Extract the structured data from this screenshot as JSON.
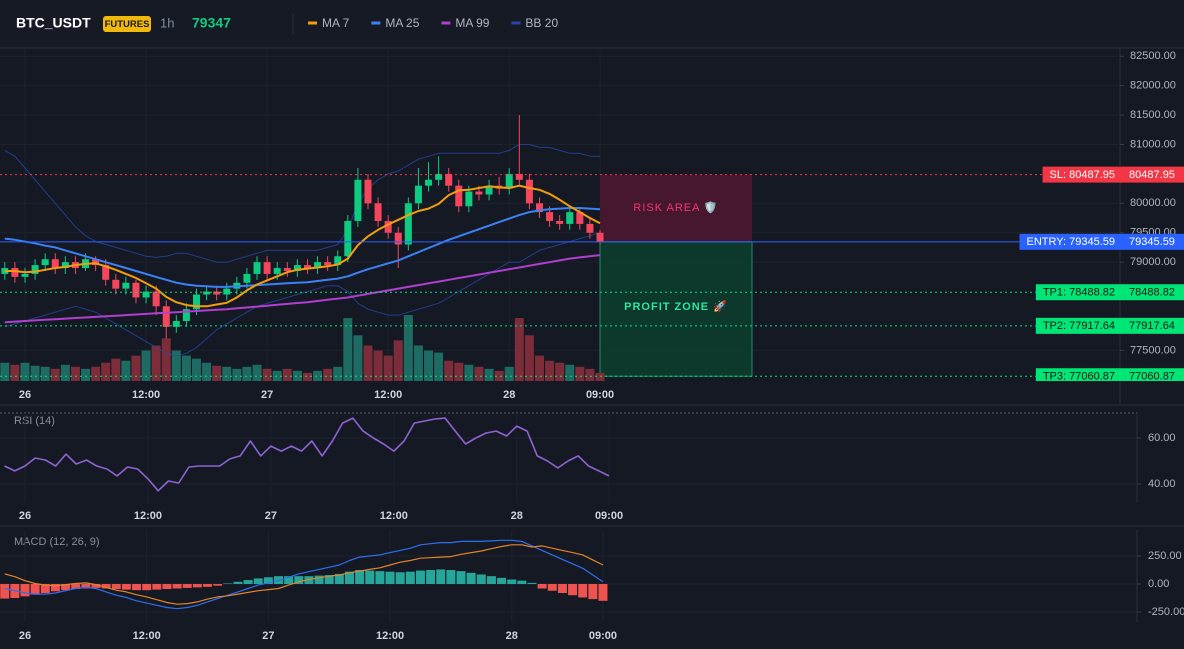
{
  "header": {
    "symbol": "BTC_USDT",
    "badge": "FUTURES",
    "interval": "1h",
    "price": 79347
  },
  "chart_data": [
    {
      "type": "candlestick",
      "categories": [
        null,
        null,
        "26",
        null,
        null,
        null,
        null,
        null,
        null,
        null,
        null,
        null,
        null,
        null,
        "12:00",
        null,
        null,
        null,
        null,
        null,
        null,
        null,
        null,
        null,
        null,
        null,
        "27",
        null,
        null,
        null,
        null,
        null,
        null,
        null,
        null,
        null,
        null,
        null,
        "12:00",
        null,
        null,
        null,
        null,
        null,
        null,
        null,
        null,
        null,
        null,
        null,
        "28",
        null,
        null,
        null,
        null,
        null,
        null,
        null,
        null,
        "09:00"
      ],
      "open": [
        78800,
        78900,
        78750,
        78800,
        78950,
        79050,
        78900,
        79000,
        78900,
        79050,
        78950,
        78700,
        78550,
        78650,
        78400,
        78500,
        78250,
        77900,
        78000,
        78200,
        78450,
        78500,
        78450,
        78550,
        78650,
        78800,
        79000,
        78800,
        78900,
        78850,
        78950,
        78900,
        79000,
        78950,
        79100,
        79700,
        80400,
        80000,
        79700,
        79500,
        79300,
        80000,
        80300,
        80400,
        80500,
        80300,
        79950,
        80200,
        80150,
        80300,
        80250,
        80500,
        80400,
        80000,
        79850,
        79700,
        79650,
        79850,
        79650,
        79500
      ],
      "high": [
        79000,
        79000,
        78900,
        79050,
        79150,
        79150,
        79100,
        79100,
        79150,
        79100,
        79050,
        78800,
        78750,
        78700,
        78600,
        78600,
        78350,
        78100,
        78300,
        78550,
        78600,
        78600,
        78650,
        78750,
        78900,
        79100,
        79100,
        79000,
        79000,
        79050,
        79050,
        79100,
        79100,
        79200,
        79800,
        80600,
        80500,
        80100,
        79800,
        79600,
        80100,
        80600,
        80700,
        80800,
        80600,
        80400,
        80300,
        80300,
        80400,
        80450,
        80600,
        81500,
        80500,
        80100,
        79950,
        79800,
        79950,
        79900,
        79750,
        79550
      ],
      "low": [
        78700,
        78650,
        78650,
        78700,
        78850,
        78800,
        78800,
        78800,
        78850,
        78850,
        78600,
        78450,
        78450,
        78300,
        78300,
        78100,
        77700,
        77800,
        77900,
        78100,
        78350,
        78350,
        78350,
        78450,
        78550,
        78700,
        78700,
        78700,
        78750,
        78750,
        78800,
        78800,
        78850,
        78850,
        79000,
        79600,
        79900,
        79600,
        79400,
        78900,
        79200,
        79900,
        80200,
        80300,
        80200,
        79850,
        79850,
        80050,
        80050,
        80150,
        80150,
        80300,
        79900,
        79750,
        79600,
        79550,
        79550,
        79550,
        79400,
        79300
      ],
      "close": [
        78900,
        78750,
        78800,
        78950,
        79050,
        78900,
        79000,
        78900,
        79050,
        78950,
        78700,
        78550,
        78650,
        78400,
        78500,
        78250,
        77900,
        78000,
        78200,
        78450,
        78500,
        78450,
        78550,
        78650,
        78800,
        79000,
        78800,
        78900,
        78850,
        78950,
        78900,
        79000,
        78950,
        79100,
        79700,
        80400,
        80000,
        79700,
        79500,
        79300,
        80000,
        80300,
        80400,
        80500,
        80300,
        79950,
        80200,
        80150,
        80300,
        80250,
        80500,
        80400,
        80000,
        79850,
        79700,
        79650,
        79850,
        79650,
        79500,
        79345.59
      ],
      "up_color": "#0ecb81",
      "down_color": "#f6465d",
      "volume": {
        "values": [
          18,
          16,
          18,
          15,
          14,
          12,
          16,
          14,
          12,
          14,
          18,
          22,
          20,
          25,
          30,
          35,
          42,
          30,
          25,
          22,
          18,
          15,
          14,
          12,
          14,
          16,
          12,
          10,
          12,
          10,
          8,
          10,
          12,
          14,
          62,
          45,
          35,
          30,
          25,
          40,
          65,
          35,
          30,
          28,
          20,
          18,
          16,
          14,
          12,
          10,
          14,
          62,
          45,
          25,
          20,
          18,
          16,
          14,
          12,
          8
        ],
        "up_color": "#1d6b62",
        "down_color": "#7c2d39"
      },
      "overlays": [
        {
          "name": "MA 7",
          "color": "#f59e0b",
          "values": [
            78850,
            78850,
            78830,
            78840,
            78870,
            78900,
            78920,
            78950,
            78970,
            78980,
            78930,
            78870,
            78800,
            78730,
            78640,
            78550,
            78410,
            78320,
            78270,
            78250,
            78250,
            78280,
            78310,
            78400,
            78520,
            78620,
            78690,
            78760,
            78830,
            78870,
            78890,
            78910,
            78930,
            78960,
            79060,
            79290,
            79440,
            79550,
            79640,
            79720,
            79800,
            79870,
            79910,
            79990,
            80140,
            80220,
            80230,
            80260,
            80290,
            80270,
            80260,
            80300,
            80260,
            80230,
            80160,
            80060,
            79950,
            79850,
            79750,
            79660
          ]
        },
        {
          "name": "MA 25",
          "color": "#3b82f6",
          "values": [
            79400,
            79380,
            79350,
            79320,
            79280,
            79250,
            79200,
            79150,
            79100,
            79050,
            79000,
            78950,
            78900,
            78850,
            78800,
            78750,
            78700,
            78650,
            78620,
            78600,
            78590,
            78580,
            78580,
            78590,
            78600,
            78610,
            78620,
            78630,
            78640,
            78650,
            78660,
            78680,
            78700,
            78720,
            78760,
            78820,
            78880,
            78930,
            78980,
            79030,
            79100,
            79170,
            79240,
            79310,
            79380,
            79440,
            79500,
            79560,
            79620,
            79680,
            79740,
            79800,
            79850,
            79880,
            79900,
            79910,
            79920,
            79920,
            79910,
            79900
          ]
        },
        {
          "name": "MA 99",
          "color": "#b13fd1",
          "values": [
            77980,
            77990,
            78000,
            78010,
            78020,
            78030,
            78040,
            78050,
            78060,
            78070,
            78080,
            78090,
            78100,
            78110,
            78120,
            78130,
            78140,
            78150,
            78160,
            78170,
            78180,
            78190,
            78200,
            78215,
            78230,
            78245,
            78260,
            78275,
            78290,
            78305,
            78320,
            78340,
            78360,
            78380,
            78400,
            78430,
            78460,
            78490,
            78520,
            78550,
            78580,
            78610,
            78640,
            78670,
            78700,
            78730,
            78760,
            78790,
            78820,
            78850,
            78880,
            78910,
            78940,
            78970,
            79000,
            79030,
            79060,
            79080,
            79100,
            79120
          ]
        },
        {
          "name": "BB 20",
          "color": "#2747a8",
          "upper": [
            80900,
            80800,
            80600,
            80400,
            80200,
            80000,
            79800,
            79600,
            79450,
            79350,
            79300,
            79250,
            79200,
            79150,
            79100,
            79080,
            79100,
            79150,
            79150,
            79100,
            79050,
            79000,
            79000,
            79050,
            79100,
            79150,
            79200,
            79200,
            79200,
            79200,
            79200,
            79200,
            79250,
            79300,
            79550,
            80000,
            80250,
            80400,
            80500,
            80550,
            80650,
            80750,
            80800,
            80850,
            80850,
            80850,
            80850,
            80850,
            80850,
            80850,
            80900,
            81000,
            81000,
            80950,
            80950,
            80900,
            80850,
            80850,
            80800,
            80800
          ],
          "lower": [
            77900,
            77950,
            78000,
            78050,
            78100,
            78150,
            78200,
            78250,
            78200,
            78150,
            78050,
            77950,
            77850,
            77750,
            77650,
            77550,
            77450,
            77400,
            77450,
            77550,
            77700,
            77850,
            77950,
            78050,
            78150,
            78250,
            78300,
            78350,
            78400,
            78450,
            78500,
            78550,
            78600,
            78600,
            78500,
            78300,
            78200,
            78150,
            78100,
            78100,
            78150,
            78200,
            78250,
            78300,
            78400,
            78500,
            78600,
            78700,
            78800,
            78900,
            79000,
            79000,
            79100,
            79200,
            79250,
            79300,
            79350,
            79400,
            79450,
            79500
          ]
        }
      ],
      "ylim": [
        76980,
        82640
      ],
      "yticks": [
        {
          "value": 82500,
          "label": "82500.00"
        },
        {
          "value": 82000,
          "label": "82000.00"
        },
        {
          "value": 81500,
          "label": "81500.00"
        },
        {
          "value": 81000,
          "label": "81000.00"
        },
        {
          "value": 80000,
          "label": "80000.00"
        },
        {
          "value": 79500,
          "label": "79500.00"
        },
        {
          "value": 79000,
          "label": "79000.00"
        },
        {
          "value": 77500,
          "label": "77500.00"
        }
      ],
      "grid": true,
      "levels": [
        {
          "label": "SL: 80487.95",
          "value": 80487.95,
          "color": "#f23645",
          "text_color": "#ffffff",
          "style": "dotted"
        },
        {
          "label": "ENTRY: 79345.59",
          "value": 79345.59,
          "color": "#2962ff",
          "text_color": "#ffffff",
          "style": "solid"
        },
        {
          "label": "TP1: 78488.82",
          "value": 78488.82,
          "color": "#00e676",
          "text_color": "#0b1a12",
          "style": "dotted"
        },
        {
          "label": "TP2: 77917.64",
          "value": 77917.64,
          "color": "#00e676",
          "text_color": "#0b1a12",
          "style": "dotted"
        },
        {
          "label": "TP3: 77060.87",
          "value": 77060.87,
          "color": "#00e676",
          "text_color": "#0b1a12",
          "style": "dotted"
        }
      ],
      "risk_label": "RISK AREA 🛡️",
      "profit_label": "PROFIT ZONE 🚀"
    },
    {
      "type": "line",
      "title": "RSI (14)",
      "categories": [
        null,
        null,
        "26",
        null,
        null,
        null,
        null,
        null,
        null,
        null,
        null,
        null,
        null,
        null,
        "12:00",
        null,
        null,
        null,
        null,
        null,
        null,
        null,
        null,
        null,
        null,
        null,
        "27",
        null,
        null,
        null,
        null,
        null,
        null,
        null,
        null,
        null,
        null,
        null,
        "12:00",
        null,
        null,
        null,
        null,
        null,
        null,
        null,
        null,
        null,
        null,
        null,
        "28",
        null,
        null,
        null,
        null,
        null,
        null,
        null,
        null,
        "09:00"
      ],
      "values": [
        47.8,
        45.7,
        47.8,
        51.3,
        50.4,
        47.8,
        53.0,
        48.7,
        50.4,
        47.8,
        46.5,
        43.5,
        47.4,
        46.5,
        42.2,
        37.0,
        41.3,
        40.4,
        47.4,
        47.8,
        47.8,
        47.8,
        50.9,
        52.2,
        58.7,
        52.2,
        56.5,
        54.3,
        56.5,
        54.3,
        58.7,
        52.2,
        58.7,
        66.5,
        68.7,
        63.0,
        60.0,
        57.4,
        54.3,
        58.7,
        66.5,
        67.4,
        68.3,
        68.7,
        63.0,
        57.4,
        60.0,
        62.2,
        63.0,
        60.9,
        65.2,
        63.0,
        52.2,
        50.0,
        47.0,
        50.0,
        52.2,
        47.8,
        45.7,
        43.5
      ],
      "color": "#8e63d2",
      "ylim": [
        31.7,
        70.9
      ],
      "yticks": [
        {
          "value": 60,
          "label": "60.00"
        },
        {
          "value": 40,
          "label": "40.00"
        }
      ],
      "grid": true
    },
    {
      "type": "macd",
      "title": "MACD (12, 26, 9)",
      "categories": [
        null,
        null,
        "26",
        null,
        null,
        null,
        null,
        null,
        null,
        null,
        null,
        null,
        null,
        null,
        "12:00",
        null,
        null,
        null,
        null,
        null,
        null,
        null,
        null,
        null,
        null,
        null,
        "27",
        null,
        null,
        null,
        null,
        null,
        null,
        null,
        null,
        null,
        null,
        null,
        "12:00",
        null,
        null,
        null,
        null,
        null,
        null,
        null,
        null,
        null,
        null,
        null,
        "28",
        null,
        null,
        null,
        null,
        null,
        null,
        null,
        null,
        "09:00"
      ],
      "histogram": [
        -130,
        -125,
        -110,
        -95,
        -80,
        -65,
        -55,
        -45,
        -40,
        -35,
        -40,
        -45,
        -50,
        -55,
        -55,
        -50,
        -45,
        -40,
        -35,
        -30,
        -25,
        -15,
        5,
        20,
        35,
        50,
        60,
        70,
        70,
        70,
        70,
        75,
        80,
        90,
        110,
        125,
        120,
        115,
        110,
        105,
        110,
        120,
        125,
        130,
        125,
        115,
        100,
        85,
        70,
        55,
        40,
        30,
        10,
        -40,
        -60,
        -80,
        -100,
        -120,
        -135,
        -150
      ],
      "pos_color": "#26a69a",
      "neg_color": "#ef5350",
      "macd": {
        "color": "#2f6ff0",
        "values": [
          -40,
          -60,
          -80,
          -90,
          -90,
          -80,
          -60,
          -40,
          -30,
          -40,
          -70,
          -100,
          -120,
          -150,
          -170,
          -190,
          -210,
          -220,
          -210,
          -190,
          -160,
          -130,
          -100,
          -70,
          -40,
          -10,
          10,
          30,
          60,
          90,
          110,
          130,
          150,
          170,
          210,
          240,
          250,
          260,
          280,
          300,
          320,
          350,
          360,
          370,
          370,
          380,
          380,
          380,
          385,
          390,
          390,
          380,
          340,
          300,
          260,
          220,
          180,
          140,
          80,
          20
        ]
      },
      "signal": {
        "color": "#e5832c",
        "values": [
          90,
          65,
          30,
          5,
          -10,
          -15,
          -5,
          5,
          10,
          -5,
          -30,
          -55,
          -70,
          -95,
          -115,
          -140,
          -165,
          -180,
          -175,
          -160,
          -135,
          -115,
          -105,
          -90,
          -75,
          -60,
          -50,
          -40,
          -10,
          20,
          40,
          55,
          70,
          80,
          100,
          115,
          130,
          145,
          170,
          195,
          210,
          230,
          235,
          240,
          245,
          265,
          280,
          295,
          315,
          335,
          350,
          350,
          330,
          340,
          320,
          300,
          280,
          260,
          215,
          170
        ]
      },
      "ylim": [
        -339,
        482
      ],
      "yticks": [
        {
          "value": 250,
          "label": "250.00"
        },
        {
          "value": 0,
          "label": "0.00"
        },
        {
          "value": -250,
          "label": "-250.00"
        }
      ],
      "grid": true
    }
  ]
}
